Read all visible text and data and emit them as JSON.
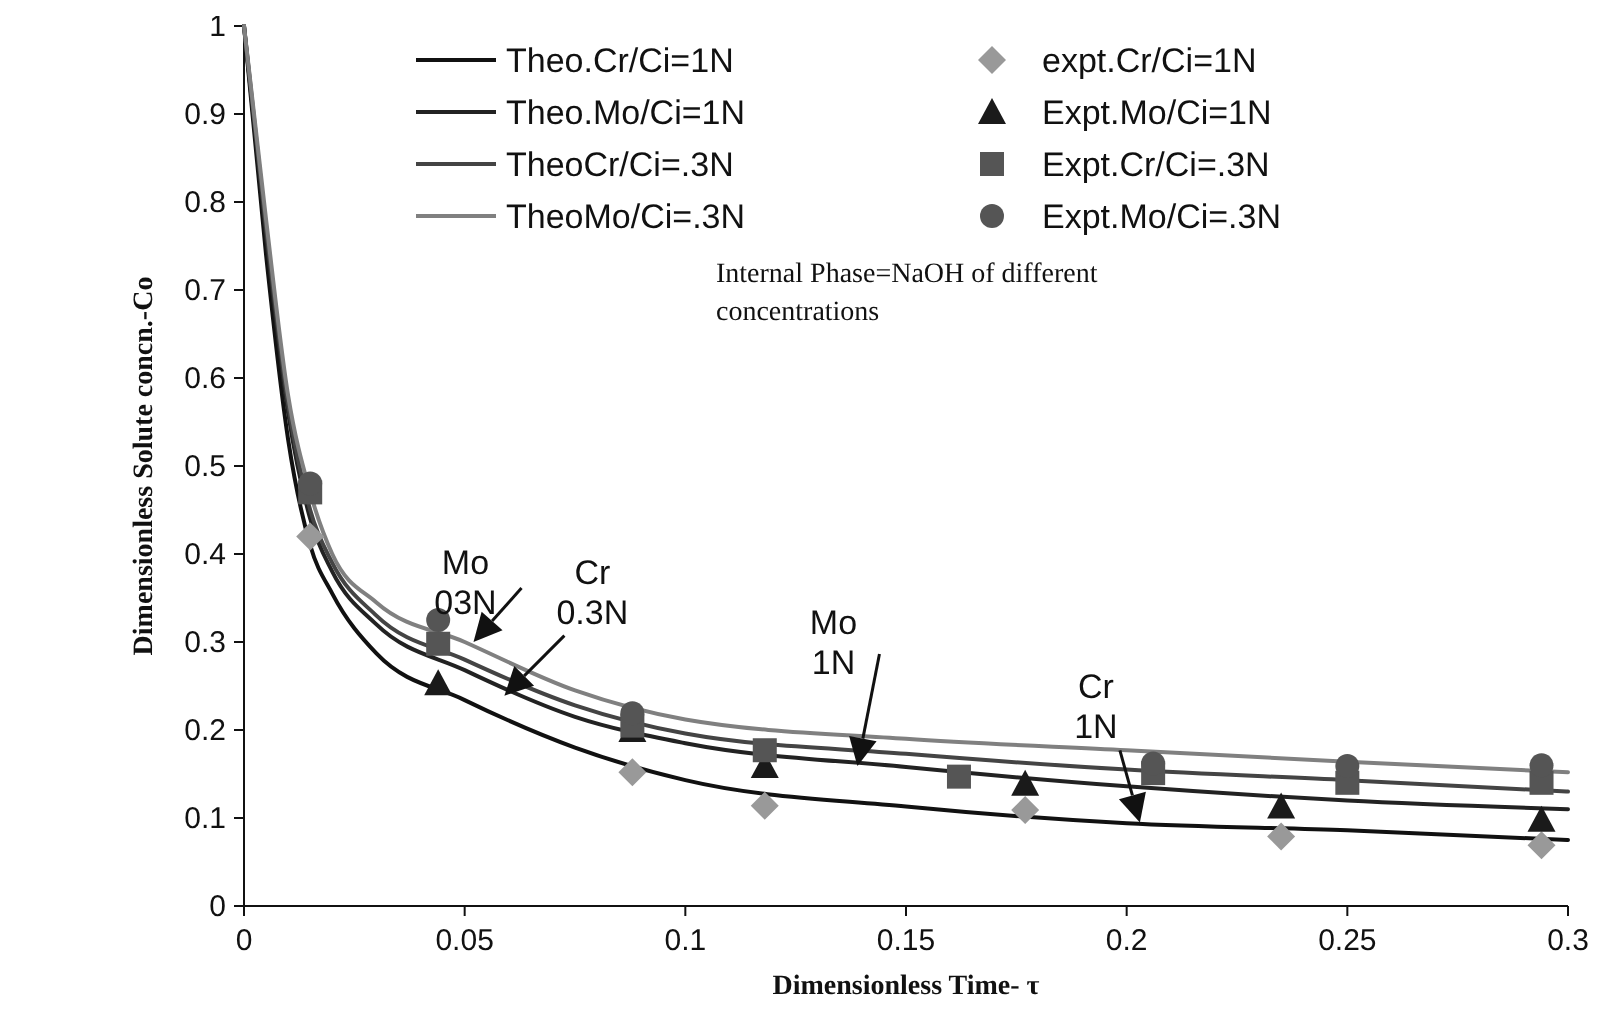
{
  "chart_data": {
    "type": "line",
    "xlabel": "Dimensionless Time- τ",
    "ylabel": "Dimensionless Solute concn.-Co",
    "xlim": [
      0,
      0.3
    ],
    "xticks": [
      0,
      0.05,
      0.1,
      0.15,
      0.2,
      0.25,
      0.3
    ],
    "ylim": [
      0,
      1
    ],
    "yticks": [
      0,
      0.1,
      0.2,
      0.3,
      0.4,
      0.5,
      0.6,
      0.7,
      0.8,
      0.9,
      1
    ],
    "grid": false,
    "legend": "top",
    "series": [
      {
        "name": "Theo.Cr/Ci=1N",
        "marker": "none",
        "color": "#111111",
        "x": [
          0,
          0.005,
          0.01,
          0.015,
          0.02,
          0.03,
          0.05,
          0.075,
          0.1,
          0.15,
          0.2,
          0.25,
          0.3
        ],
        "values": [
          1,
          0.74,
          0.53,
          0.41,
          0.355,
          0.287,
          0.234,
          0.18,
          0.143,
          0.113,
          0.094,
          0.086,
          0.075
        ]
      },
      {
        "name": "Theo.Mo/Ci=1N",
        "marker": "none",
        "color": "#222222",
        "x": [
          0,
          0.005,
          0.01,
          0.015,
          0.02,
          0.03,
          0.05,
          0.075,
          0.1,
          0.15,
          0.2,
          0.25,
          0.3
        ],
        "values": [
          1,
          0.76,
          0.56,
          0.44,
          0.38,
          0.32,
          0.268,
          0.215,
          0.185,
          0.158,
          0.136,
          0.12,
          0.11
        ]
      },
      {
        "name": "TheoCr/Ci=.3N",
        "marker": "none",
        "color": "#444444",
        "x": [
          0,
          0.005,
          0.01,
          0.015,
          0.02,
          0.03,
          0.05,
          0.075,
          0.1,
          0.15,
          0.2,
          0.25,
          0.3
        ],
        "values": [
          1,
          0.77,
          0.57,
          0.45,
          0.39,
          0.33,
          0.28,
          0.228,
          0.196,
          0.173,
          0.155,
          0.143,
          0.13
        ]
      },
      {
        "name": "TheoMo/Ci=.3N",
        "marker": "none",
        "color": "#808080",
        "x": [
          0,
          0.005,
          0.01,
          0.015,
          0.02,
          0.03,
          0.05,
          0.075,
          0.1,
          0.15,
          0.2,
          0.25,
          0.3
        ],
        "values": [
          1,
          0.78,
          0.58,
          0.47,
          0.4,
          0.345,
          0.3,
          0.245,
          0.212,
          0.19,
          0.177,
          0.164,
          0.152
        ]
      },
      {
        "name": "expt.Cr/Ci=1N",
        "type": "scatter",
        "marker": "diamond",
        "color": "#999999",
        "x": [
          0.015,
          0.088,
          0.118,
          0.177,
          0.235,
          0.294
        ],
        "values": [
          0.42,
          0.152,
          0.114,
          0.109,
          0.079,
          0.069
        ]
      },
      {
        "name": "Expt.Mo/Ci=1N",
        "type": "scatter",
        "marker": "triangle",
        "color": "#1a1a1a",
        "x": [
          0.044,
          0.088,
          0.118,
          0.177,
          0.235,
          0.294
        ],
        "values": [
          0.253,
          0.2,
          0.159,
          0.139,
          0.113,
          0.098
        ]
      },
      {
        "name": "Expt.Cr/Ci=.3N",
        "type": "scatter",
        "marker": "square",
        "color": "#555555",
        "x": [
          0.015,
          0.044,
          0.088,
          0.118,
          0.162,
          0.206,
          0.25,
          0.294
        ],
        "values": [
          0.47,
          0.298,
          0.205,
          0.177,
          0.147,
          0.151,
          0.14,
          0.14
        ]
      },
      {
        "name": "Expt.Mo/Ci=.3N",
        "type": "scatter",
        "marker": "circle",
        "color": "#555555",
        "x": [
          0.015,
          0.044,
          0.088,
          0.206,
          0.25,
          0.294
        ],
        "values": [
          0.48,
          0.325,
          0.219,
          0.162,
          0.159,
          0.16
        ]
      }
    ],
    "annotations": [
      "Internal Phase=NaOH of different concentrations",
      {
        "text": "Mo\n03N",
        "x": 0.052,
        "y": 0.3
      },
      {
        "text": "Cr\n0.3N",
        "x": 0.059,
        "y": 0.239
      },
      {
        "text": "Mo\n1N",
        "x": 0.139,
        "y": 0.159
      },
      {
        "text": "Cr\n1N",
        "x": 0.203,
        "y": 0.095
      }
    ]
  }
}
